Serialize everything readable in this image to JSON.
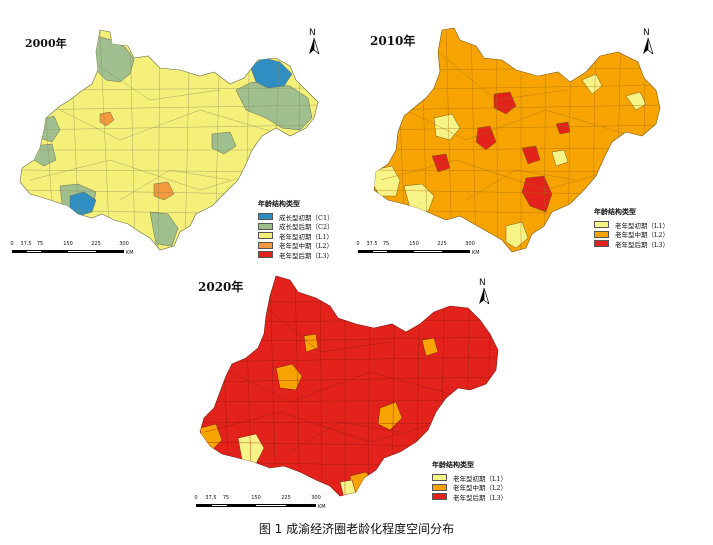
{
  "maps": [
    {
      "year": "2000年",
      "legend_title": "年龄结构类型",
      "legend_items": [
        {
          "label": "成长型初期（C1）",
          "color": "#2f8fc3"
        },
        {
          "label": "成长型后期（C2）",
          "color": "#9fbf8f"
        },
        {
          "label": "老年型初期（L1）",
          "color": "#f4f07a"
        },
        {
          "label": "老年型中期（L2）",
          "color": "#f39a3c"
        },
        {
          "label": "老年型后期（L3）",
          "color": "#e3221c"
        }
      ],
      "scale_ticks": [
        "0",
        "37.5",
        "75",
        "150",
        "225",
        "300"
      ],
      "scale_unit": "KM",
      "north": "N"
    },
    {
      "year": "2010年",
      "legend_title": "年龄结构类型",
      "legend_items": [
        {
          "label": "老年型初期（L1）",
          "color": "#f7f487"
        },
        {
          "label": "老年型中期（L2）",
          "color": "#f8a400"
        },
        {
          "label": "老年型后期（L3）",
          "color": "#e3221c"
        }
      ],
      "scale_ticks": [
        "0",
        "37.5",
        "75",
        "150",
        "225",
        "300"
      ],
      "scale_unit": "KM",
      "north": "N"
    },
    {
      "year": "2020年",
      "legend_title": "年龄结构类型",
      "legend_items": [
        {
          "label": "老年型初期（L1）",
          "color": "#f7f487"
        },
        {
          "label": "老年型中期（L2）",
          "color": "#f8a400"
        },
        {
          "label": "老年型后期（L3）",
          "color": "#e3221c"
        }
      ],
      "scale_ticks": [
        "0",
        "37.5",
        "75",
        "150",
        "225",
        "300"
      ],
      "scale_unit": "KM",
      "north": "N"
    }
  ],
  "caption": "图 1  成渝经济圈老龄化程度空间分布"
}
